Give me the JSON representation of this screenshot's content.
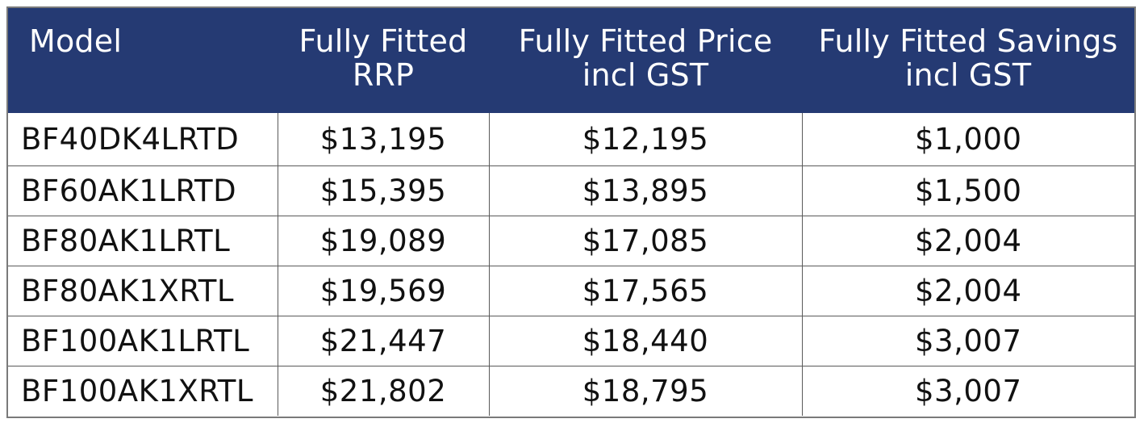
{
  "table": {
    "headers": {
      "model": "Model",
      "rrp": [
        "Fully Fitted",
        "RRP"
      ],
      "price": [
        "Fully Fitted Price",
        "incl GST"
      ],
      "savings": [
        "Fully Fitted Savings",
        "incl GST"
      ]
    },
    "rows": [
      {
        "model": "BF40DK4LRTD",
        "rrp": "$13,195",
        "price": "$12,195",
        "savings": "$1,000"
      },
      {
        "model": "BF60AK1LRTD",
        "rrp": "$15,395",
        "price": "$13,895",
        "savings": "$1,500"
      },
      {
        "model": "BF80AK1LRTL",
        "rrp": "$19,089",
        "price": "$17,085",
        "savings": "$2,004"
      },
      {
        "model": "BF80AK1XRTL",
        "rrp": "$19,569",
        "price": "$17,565",
        "savings": "$2,004"
      },
      {
        "model": "BF100AK1LRTL",
        "rrp": "$21,447",
        "price": "$18,440",
        "savings": "$3,007"
      },
      {
        "model": "BF100AK1XRTL",
        "rrp": "$21,802",
        "price": "$18,795",
        "savings": "$3,007"
      }
    ]
  },
  "colors": {
    "header_bg": "#253a73",
    "header_text": "#ffffff",
    "grid": "#5a5a5a"
  }
}
